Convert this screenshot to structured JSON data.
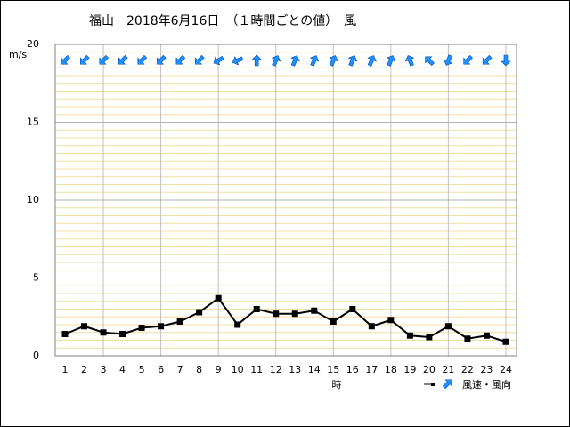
{
  "chart_data": {
    "type": "line",
    "title": "福山　2018年6月16日　（１時間ごとの値）　風",
    "y_label": "m/s",
    "x_label": "時",
    "categories": [
      1,
      2,
      3,
      4,
      5,
      6,
      7,
      8,
      9,
      10,
      11,
      12,
      13,
      14,
      15,
      16,
      17,
      18,
      19,
      20,
      21,
      22,
      23,
      24
    ],
    "series": [
      {
        "name": "風速・風向",
        "color": "#000000",
        "values": [
          1.4,
          1.9,
          1.5,
          1.4,
          1.8,
          1.9,
          2.2,
          2.8,
          3.7,
          2.0,
          3.0,
          2.7,
          2.7,
          2.9,
          2.2,
          3.0,
          1.9,
          2.3,
          1.3,
          1.2,
          1.9,
          1.1,
          1.3,
          0.9
        ]
      }
    ],
    "directions": [
      225,
      225,
      225,
      225,
      225,
      225,
      225,
      225,
      240,
      247.5,
      0,
      22.5,
      22.5,
      22.5,
      22.5,
      22.5,
      22.5,
      22.5,
      337.5,
      315,
      202.5,
      225,
      225,
      180
    ],
    "direction_color": "#1e90ff",
    "ylim": [
      0,
      20
    ],
    "yticks": [
      0,
      5,
      10,
      15,
      20
    ],
    "grid": true
  }
}
